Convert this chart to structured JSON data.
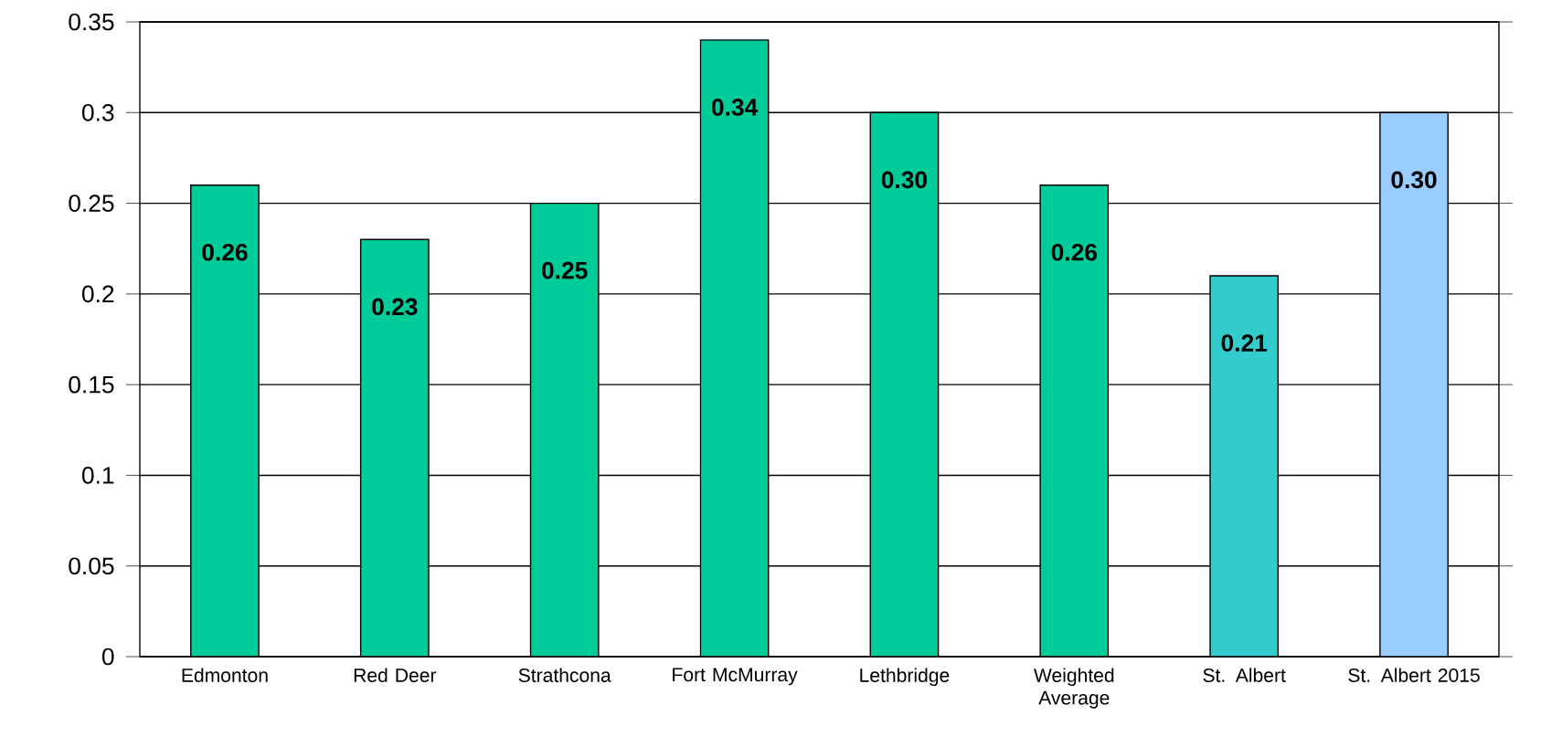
{
  "chart_data": {
    "type": "bar",
    "categories": [
      "Edmonton",
      "Red Deer",
      "Strathcona",
      "Fort McMurray",
      "Lethbridge",
      "Weighted Average",
      "St. Albert",
      "St. Albert 2015"
    ],
    "values": [
      0.26,
      0.23,
      0.25,
      0.34,
      0.3,
      0.26,
      0.21,
      0.3
    ],
    "value_labels": [
      "0.26",
      "0.23",
      "0.25",
      "0.34",
      "0.30",
      "0.26",
      "0.21",
      "0.30"
    ],
    "colors": [
      "#00cc99",
      "#00cc99",
      "#00cc99",
      "#00cc99",
      "#00cc99",
      "#00cc99",
      "#33cccc",
      "#99ccff"
    ],
    "ylim": [
      0,
      0.35
    ],
    "yticks": [
      0,
      0.05,
      0.1,
      0.15,
      0.2,
      0.25,
      0.3,
      0.35
    ],
    "grid": "y"
  }
}
